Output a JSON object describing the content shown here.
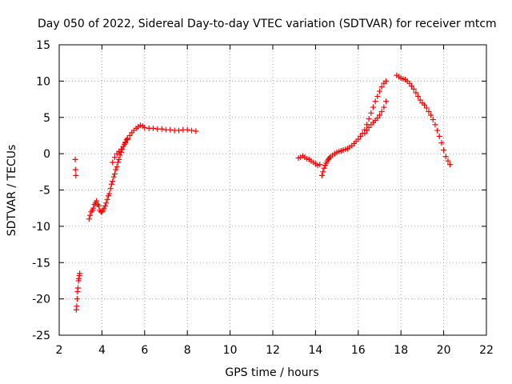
{
  "chart_data": {
    "type": "scatter",
    "title": "Day 050 of 2022, Sidereal Day-to-day VTEC variation (SDTVAR) for receiver mtcm",
    "xlabel": "GPS time / hours",
    "ylabel": "SDTVAR / TECUs",
    "xlim": [
      2,
      22
    ],
    "ylim": [
      -25,
      15
    ],
    "xticks": [
      2,
      4,
      6,
      8,
      10,
      12,
      14,
      16,
      18,
      20,
      22
    ],
    "yticks": [
      -25,
      -20,
      -15,
      -10,
      -5,
      0,
      5,
      10,
      15
    ],
    "grid": true,
    "marker": "+",
    "color": "#ff0000",
    "series": [
      {
        "name": "SDTVAR",
        "x": [
          2.75,
          2.76,
          2.78,
          2.8,
          2.82,
          2.84,
          2.86,
          2.88,
          2.9,
          2.92,
          2.94,
          2.96,
          3.4,
          3.45,
          3.5,
          3.55,
          3.6,
          3.65,
          3.7,
          3.75,
          3.8,
          3.85,
          3.9,
          3.95,
          4.0,
          4.05,
          4.1,
          4.15,
          4.2,
          4.25,
          4.3,
          4.35,
          4.4,
          4.45,
          4.5,
          4.55,
          4.6,
          4.65,
          4.7,
          4.75,
          4.8,
          4.85,
          4.9,
          4.95,
          5.0,
          5.05,
          5.1,
          5.15,
          5.2,
          4.5,
          4.6,
          4.7,
          4.8,
          4.9,
          5.0,
          5.1,
          5.2,
          5.3,
          5.4,
          5.5,
          5.6,
          5.7,
          5.8,
          5.9,
          6.0,
          6.2,
          6.4,
          6.6,
          6.8,
          7.0,
          7.2,
          7.4,
          7.6,
          7.8,
          8.0,
          8.2,
          8.4,
          13.2,
          13.3,
          13.4,
          13.5,
          13.6,
          13.7,
          13.8,
          13.9,
          14.0,
          14.1,
          14.2,
          14.3,
          14.35,
          14.4,
          14.45,
          14.5,
          14.55,
          14.6,
          14.65,
          14.7,
          14.8,
          14.9,
          15.0,
          15.1,
          15.2,
          15.3,
          15.4,
          15.5,
          15.6,
          15.7,
          15.8,
          15.9,
          16.0,
          16.1,
          16.2,
          16.3,
          16.4,
          16.5,
          16.6,
          16.7,
          16.8,
          16.9,
          17.0,
          17.1,
          17.2,
          17.3,
          16.3,
          16.4,
          16.5,
          16.6,
          16.7,
          16.8,
          16.9,
          17.0,
          17.1,
          17.2,
          17.3,
          17.8,
          17.9,
          18.0,
          18.1,
          18.2,
          18.3,
          18.4,
          18.5,
          18.6,
          18.7,
          18.8,
          18.9,
          19.0,
          19.1,
          19.2,
          19.3,
          19.4,
          19.5,
          19.6,
          19.7,
          19.8,
          19.9,
          20.0,
          20.1,
          20.2,
          20.3
        ],
        "y": [
          -0.8,
          -2.2,
          -3.0,
          -21.5,
          -21.0,
          -20.0,
          -19.0,
          -18.5,
          -17.5,
          -17.2,
          -16.8,
          -16.5,
          -9.0,
          -8.5,
          -8.0,
          -7.8,
          -7.5,
          -7.0,
          -6.8,
          -6.5,
          -7.0,
          -7.2,
          -7.8,
          -8.0,
          -8.0,
          -7.8,
          -7.5,
          -7.2,
          -6.8,
          -6.3,
          -5.8,
          -5.5,
          -4.8,
          -4.2,
          -3.8,
          -3.2,
          -2.8,
          -2.2,
          -1.8,
          -1.2,
          -0.8,
          -0.2,
          0.2,
          0.6,
          1.0,
          1.3,
          1.6,
          1.9,
          2.1,
          -1.2,
          -0.5,
          0.0,
          0.3,
          0.6,
          1.0,
          1.5,
          2.0,
          2.5,
          2.9,
          3.2,
          3.5,
          3.7,
          3.9,
          3.8,
          3.6,
          3.5,
          3.5,
          3.4,
          3.4,
          3.3,
          3.3,
          3.2,
          3.2,
          3.3,
          3.3,
          3.2,
          3.1,
          -0.6,
          -0.5,
          -0.3,
          -0.5,
          -0.7,
          -0.8,
          -1.0,
          -1.2,
          -1.4,
          -1.6,
          -1.5,
          -3.0,
          -2.5,
          -2.0,
          -1.6,
          -1.3,
          -1.0,
          -0.8,
          -0.6,
          -0.4,
          -0.2,
          0.0,
          0.2,
          0.3,
          0.4,
          0.5,
          0.6,
          0.7,
          0.9,
          1.1,
          1.4,
          1.7,
          2.0,
          2.4,
          2.8,
          3.3,
          4.0,
          4.8,
          5.6,
          6.4,
          7.2,
          7.9,
          8.6,
          9.2,
          9.7,
          10.0,
          2.8,
          3.2,
          3.6,
          4.0,
          4.3,
          4.6,
          4.9,
          5.3,
          5.8,
          6.4,
          7.2,
          10.8,
          10.6,
          10.4,
          10.3,
          10.2,
          10.0,
          9.7,
          9.3,
          8.9,
          8.4,
          7.9,
          7.4,
          7.0,
          6.7,
          6.3,
          5.8,
          5.3,
          4.7,
          4.0,
          3.2,
          2.4,
          1.5,
          0.5,
          -0.4,
          -1.0,
          -1.5
        ]
      }
    ]
  }
}
